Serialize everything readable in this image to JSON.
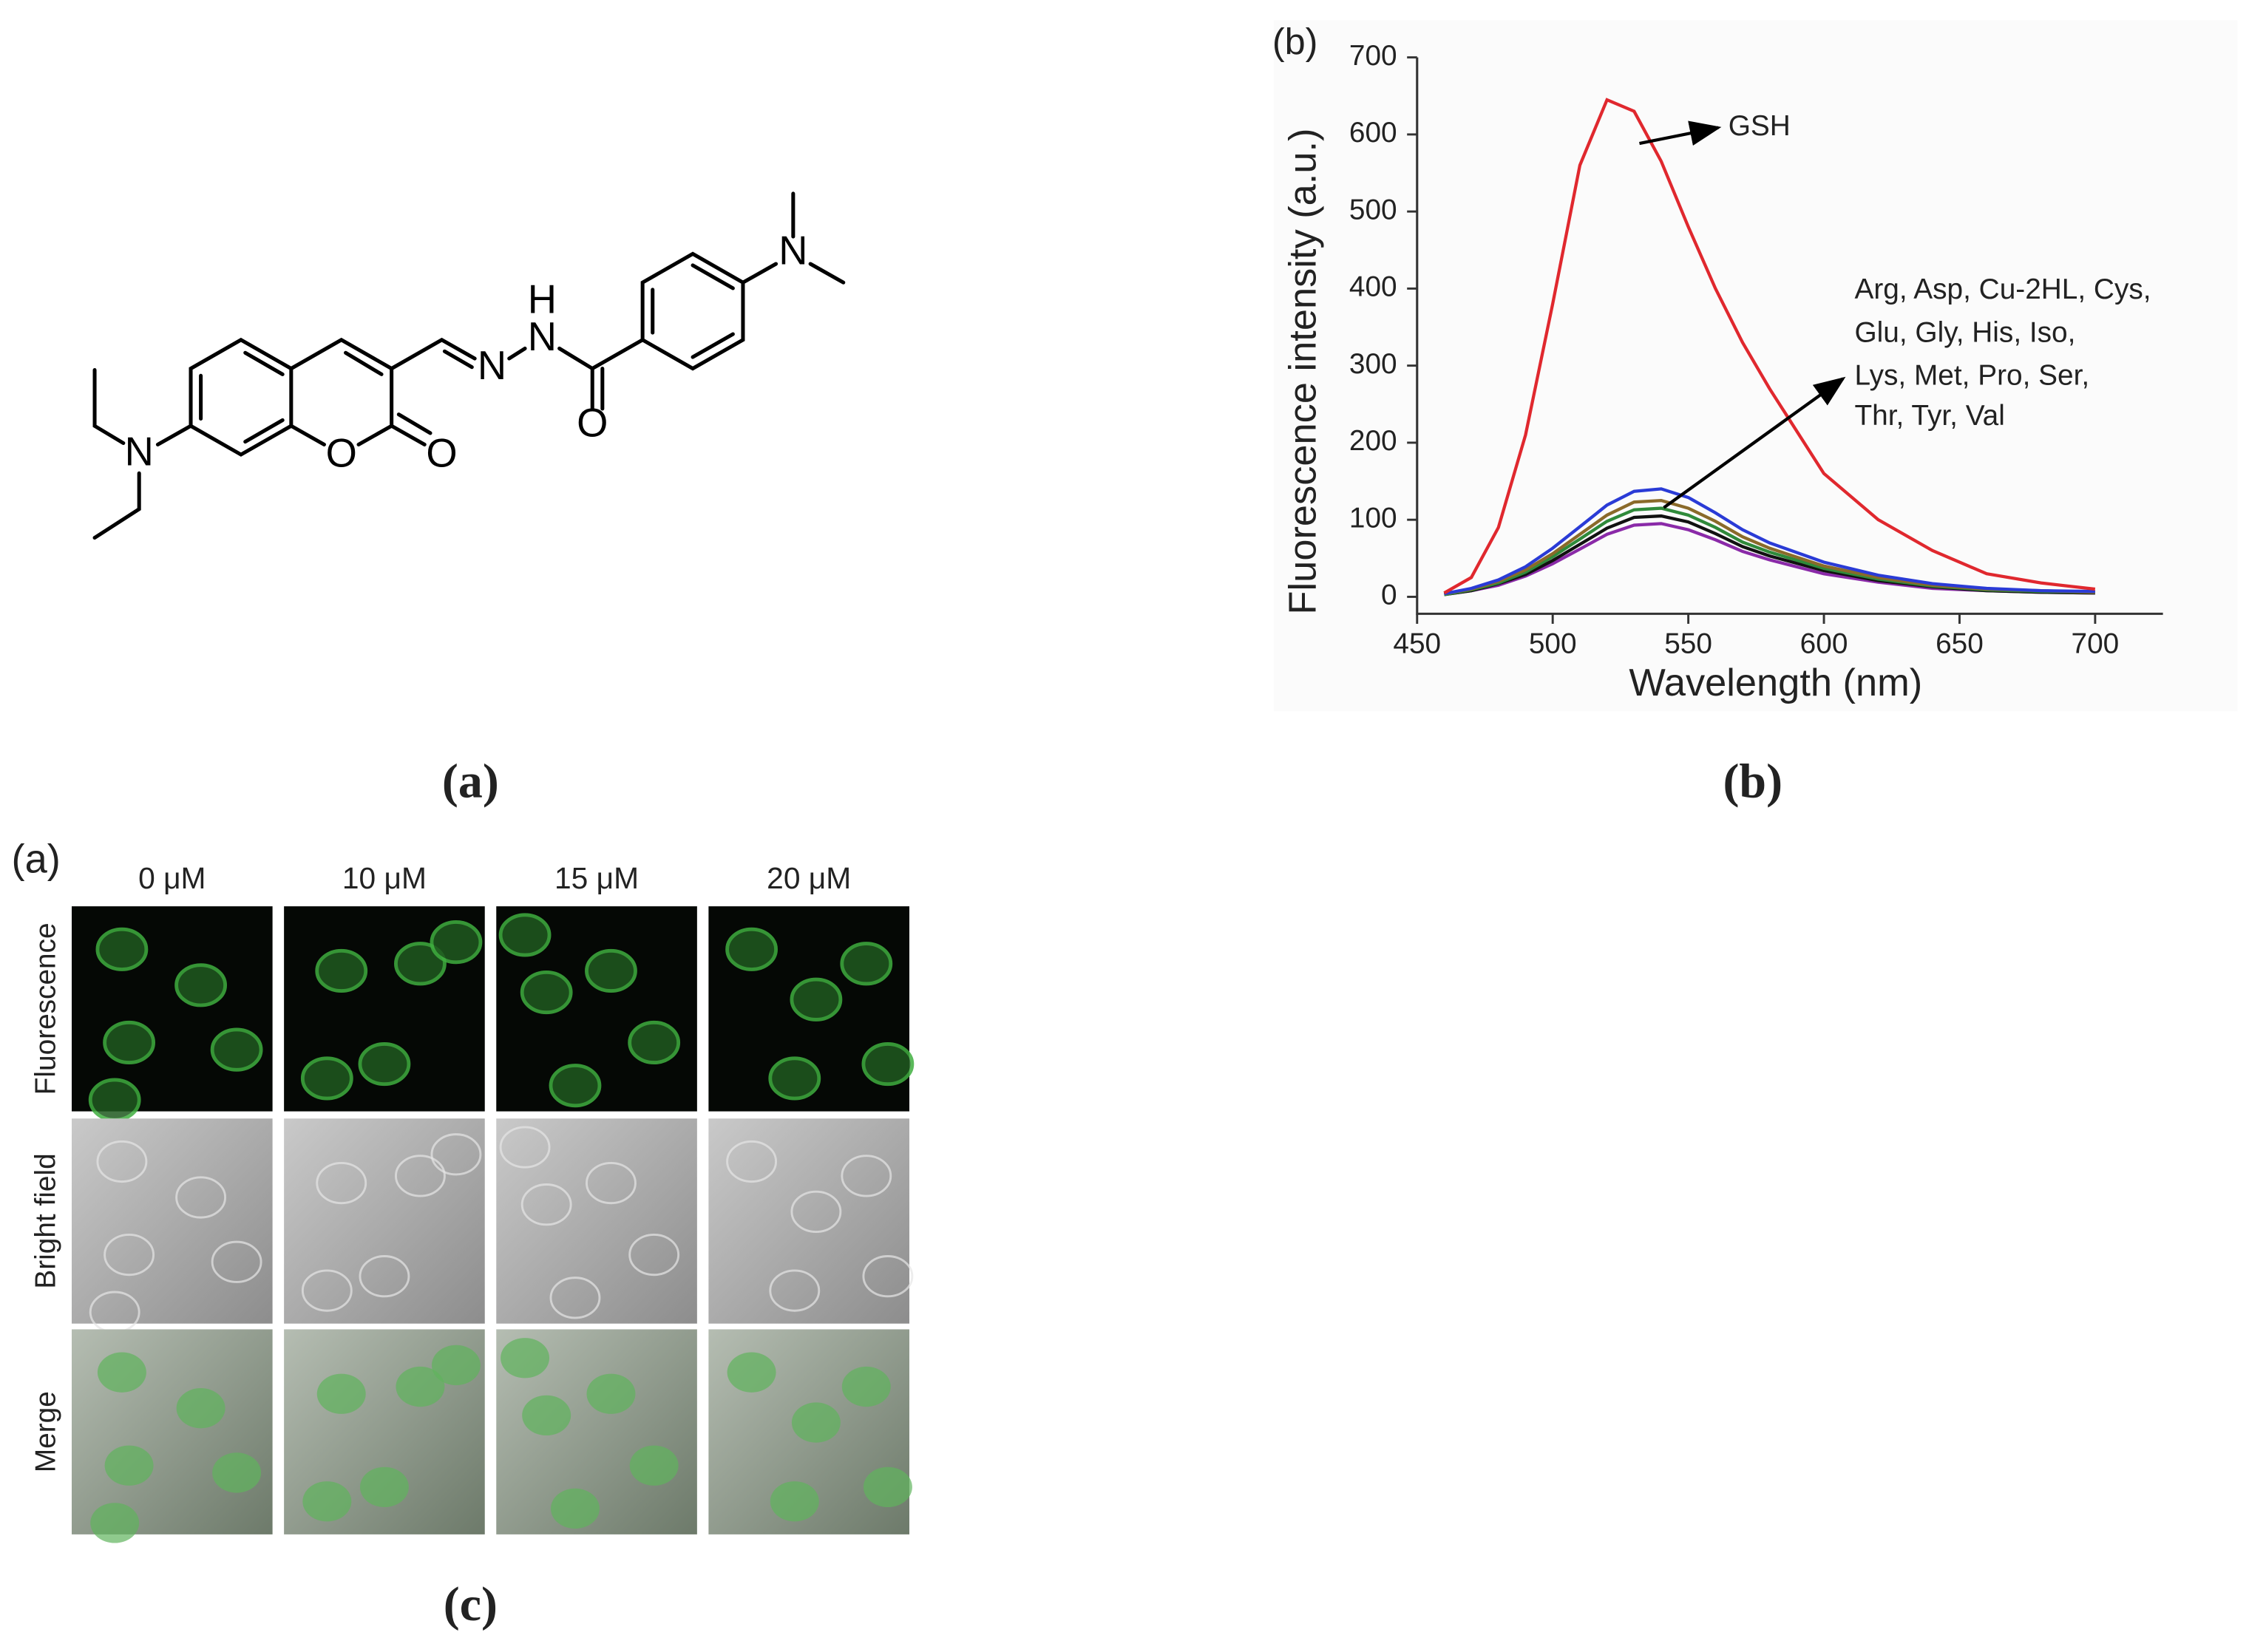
{
  "captions": [
    "(a)",
    "(b)",
    "(c)"
  ],
  "structure": {
    "atom_labels": [
      "N",
      "O",
      "O",
      "N",
      "N",
      "H",
      "O",
      "N"
    ]
  },
  "chart_data": {
    "type": "line",
    "panel_label": "(b)",
    "x_label": "Wavelength (nm)",
    "y_label": "Fluorescence intensity (a.u.)",
    "xlim": [
      450,
      725
    ],
    "ylim": [
      -22,
      700
    ],
    "xticks": [
      450,
      500,
      550,
      600,
      650,
      700
    ],
    "yticks": [
      0,
      100,
      200,
      300,
      400,
      500,
      600,
      700
    ],
    "x": [
      460,
      470,
      480,
      490,
      500,
      510,
      520,
      530,
      540,
      550,
      560,
      570,
      580,
      600,
      620,
      640,
      660,
      680,
      700
    ],
    "series": [
      {
        "color": "#e0282e",
        "values": [
          5,
          25,
          90,
          210,
          380,
          560,
          645,
          630,
          565,
          480,
          400,
          330,
          270,
          160,
          100,
          60,
          30,
          18,
          10
        ]
      },
      {
        "color": "#2a3bd6",
        "values": [
          4,
          11,
          22,
          39,
          63,
          91,
          119,
          137,
          140,
          129,
          109,
          87,
          70,
          45,
          28,
          17,
          11,
          8,
          7
        ]
      },
      {
        "color": "#8a6a2a",
        "values": [
          4,
          10,
          20,
          35,
          56,
          81,
          106,
          123,
          125,
          115,
          98,
          78,
          63,
          40,
          25,
          15,
          10,
          8,
          6
        ]
      },
      {
        "color": "#2f8a3a",
        "values": [
          3,
          9,
          18,
          32,
          52,
          75,
          98,
          113,
          115,
          106,
          90,
          71,
          58,
          37,
          23,
          14,
          9,
          7,
          6
        ]
      },
      {
        "color": "#111111",
        "values": [
          3,
          8,
          17,
          29,
          47,
          68,
          89,
          103,
          105,
          97,
          82,
          65,
          53,
          34,
          21,
          13,
          8,
          6,
          5
        ]
      },
      {
        "color": "#8a2aa8",
        "values": [
          3,
          8,
          15,
          27,
          43,
          62,
          81,
          93,
          95,
          87,
          74,
          59,
          48,
          30,
          19,
          11,
          8,
          6,
          5
        ]
      }
    ],
    "annotations": [
      "GSH",
      "Arg, Asp, Cu-2HL, Cys,",
      "Glu, Gly, His, Iso,",
      "Lys, Met, Pro, Ser,",
      "Thr, Tyr, Val"
    ]
  },
  "micrographs": {
    "panel_label": "(a)",
    "columns": [
      "0 μM",
      "10 μM",
      "15 μM",
      "20 μM"
    ],
    "rows": [
      "Fluorescence",
      "Bright field",
      "Merge"
    ]
  }
}
